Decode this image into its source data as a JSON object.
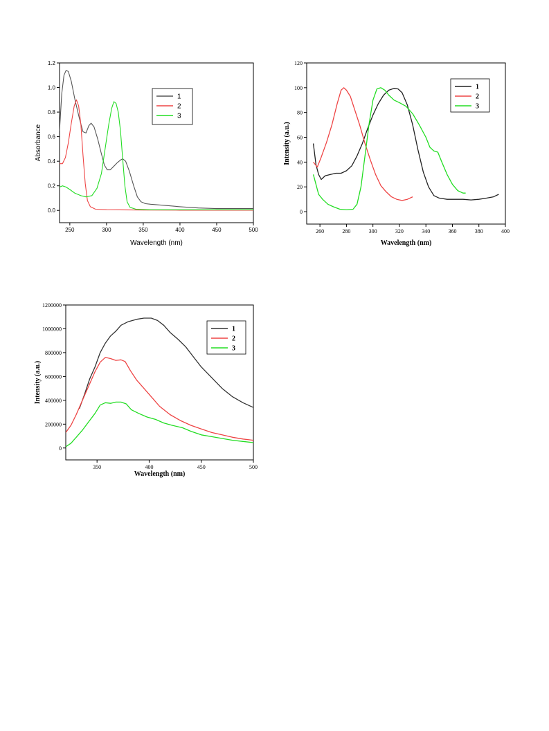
{
  "chart_data": [
    {
      "type": "line",
      "xlabel": "Wavelength (nm)",
      "ylabel": "Absorbance",
      "xlim": [
        236,
        500
      ],
      "ylim": [
        -0.1,
        1.2
      ],
      "xticks": [
        250,
        300,
        350,
        400,
        450,
        500
      ],
      "yticks": [
        0.0,
        0.2,
        0.4,
        0.6,
        0.8,
        1.0,
        1.2
      ],
      "ytick_labels": [
        "0.0",
        "0.2",
        "0.4",
        "0.6",
        "0.8",
        "1.0",
        "1.2"
      ],
      "grid": false,
      "legend_position": "top-center-right",
      "series": [
        {
          "name": "1",
          "color": "#555555",
          "points": [
            [
              236,
              0.65
            ],
            [
              239,
              0.95
            ],
            [
              242,
              1.1
            ],
            [
              245,
              1.14
            ],
            [
              248,
              1.13
            ],
            [
              252,
              1.05
            ],
            [
              257,
              0.9
            ],
            [
              263,
              0.75
            ],
            [
              268,
              0.64
            ],
            [
              272,
              0.63
            ],
            [
              276,
              0.69
            ],
            [
              279,
              0.71
            ],
            [
              283,
              0.68
            ],
            [
              288,
              0.58
            ],
            [
              293,
              0.46
            ],
            [
              297,
              0.37
            ],
            [
              301,
              0.33
            ],
            [
              305,
              0.33
            ],
            [
              310,
              0.36
            ],
            [
              315,
              0.39
            ],
            [
              319,
              0.41
            ],
            [
              322,
              0.42
            ],
            [
              326,
              0.4
            ],
            [
              331,
              0.32
            ],
            [
              337,
              0.2
            ],
            [
              342,
              0.11
            ],
            [
              347,
              0.07
            ],
            [
              353,
              0.055
            ],
            [
              360,
              0.05
            ],
            [
              380,
              0.04
            ],
            [
              400,
              0.03
            ],
            [
              425,
              0.02
            ],
            [
              450,
              0.015
            ],
            [
              475,
              0.015
            ],
            [
              500,
              0.015
            ]
          ]
        },
        {
          "name": "2",
          "color": "#ee4444",
          "points": [
            [
              236,
              0.38
            ],
            [
              240,
              0.38
            ],
            [
              244,
              0.43
            ],
            [
              248,
              0.55
            ],
            [
              252,
              0.71
            ],
            [
              256,
              0.85
            ],
            [
              259,
              0.9
            ],
            [
              262,
              0.85
            ],
            [
              265,
              0.7
            ],
            [
              268,
              0.45
            ],
            [
              271,
              0.22
            ],
            [
              274,
              0.08
            ],
            [
              278,
              0.03
            ],
            [
              285,
              0.01
            ],
            [
              300,
              0.005
            ],
            [
              350,
              0.003
            ],
            [
              400,
              0.002
            ],
            [
              500,
              0.002
            ]
          ]
        },
        {
          "name": "3",
          "color": "#22dd22",
          "points": [
            [
              236,
              0.19
            ],
            [
              240,
              0.2
            ],
            [
              245,
              0.19
            ],
            [
              250,
              0.17
            ],
            [
              257,
              0.14
            ],
            [
              265,
              0.12
            ],
            [
              272,
              0.11
            ],
            [
              280,
              0.12
            ],
            [
              287,
              0.18
            ],
            [
              293,
              0.3
            ],
            [
              298,
              0.5
            ],
            [
              303,
              0.7
            ],
            [
              307,
              0.83
            ],
            [
              310,
              0.885
            ],
            [
              313,
              0.87
            ],
            [
              316,
              0.8
            ],
            [
              319,
              0.65
            ],
            [
              322,
              0.42
            ],
            [
              325,
              0.2
            ],
            [
              328,
              0.07
            ],
            [
              332,
              0.025
            ],
            [
              340,
              0.01
            ],
            [
              360,
              0.005
            ],
            [
              400,
              0.005
            ],
            [
              500,
              0.005
            ]
          ]
        }
      ]
    },
    {
      "type": "line",
      "xlabel": "Wavelength (nm)",
      "ylabel": "Intensity (a.u.)",
      "xlim": [
        250,
        400
      ],
      "ylim": [
        -10,
        120
      ],
      "xticks": [
        260,
        280,
        300,
        320,
        340,
        360,
        380,
        400
      ],
      "yticks": [
        0,
        20,
        40,
        60,
        80,
        100,
        120
      ],
      "ytick_labels": [
        "0",
        "20",
        "40",
        "60",
        "80",
        "100",
        "120"
      ],
      "grid": false,
      "legend_position": "top-right",
      "series": [
        {
          "name": "1",
          "color": "#222222",
          "points": [
            [
              255,
              55
            ],
            [
              257,
              38
            ],
            [
              259,
              30
            ],
            [
              261,
              26
            ],
            [
              264,
              29
            ],
            [
              268,
              30
            ],
            [
              272,
              31
            ],
            [
              276,
              31
            ],
            [
              280,
              33
            ],
            [
              284,
              37
            ],
            [
              288,
              45
            ],
            [
              292,
              55
            ],
            [
              296,
              67
            ],
            [
              300,
              78
            ],
            [
              304,
              87
            ],
            [
              308,
              94
            ],
            [
              312,
              98
            ],
            [
              316,
              99.5
            ],
            [
              319,
              99
            ],
            [
              322,
              96
            ],
            [
              326,
              86
            ],
            [
              330,
              70
            ],
            [
              334,
              50
            ],
            [
              338,
              32
            ],
            [
              342,
              20
            ],
            [
              346,
              13
            ],
            [
              350,
              11
            ],
            [
              356,
              10
            ],
            [
              362,
              10
            ],
            [
              368,
              10
            ],
            [
              374,
              9.5
            ],
            [
              380,
              10
            ],
            [
              386,
              11
            ],
            [
              391,
              12
            ],
            [
              395,
              14
            ]
          ]
        },
        {
          "name": "2",
          "color": "#ee4444",
          "points": [
            [
              255,
              40
            ],
            [
              258,
              36
            ],
            [
              261,
              44
            ],
            [
              265,
              56
            ],
            [
              269,
              70
            ],
            [
              273,
              87
            ],
            [
              276,
              98
            ],
            [
              278,
              100
            ],
            [
              280,
              98
            ],
            [
              283,
              93
            ],
            [
              286,
              83
            ],
            [
              290,
              70
            ],
            [
              294,
              55
            ],
            [
              298,
              42
            ],
            [
              302,
              30
            ],
            [
              306,
              21
            ],
            [
              310,
              16
            ],
            [
              314,
              12
            ],
            [
              318,
              10
            ],
            [
              322,
              9
            ],
            [
              326,
              10
            ],
            [
              330,
              12
            ]
          ]
        },
        {
          "name": "3",
          "color": "#22dd22",
          "points": [
            [
              255,
              30
            ],
            [
              257,
              22
            ],
            [
              259,
              14
            ],
            [
              262,
              10
            ],
            [
              266,
              6
            ],
            [
              270,
              4
            ],
            [
              275,
              2
            ],
            [
              280,
              1.5
            ],
            [
              285,
              2
            ],
            [
              288,
              6
            ],
            [
              291,
              20
            ],
            [
              294,
              45
            ],
            [
              297,
              70
            ],
            [
              300,
              90
            ],
            [
              303,
              99
            ],
            [
              306,
              100
            ],
            [
              309,
              98
            ],
            [
              312,
              94
            ],
            [
              316,
              90
            ],
            [
              320,
              88
            ],
            [
              325,
              85
            ],
            [
              330,
              79
            ],
            [
              335,
              70
            ],
            [
              340,
              60
            ],
            [
              343,
              52
            ],
            [
              346,
              49
            ],
            [
              349,
              48
            ],
            [
              352,
              40
            ],
            [
              356,
              30
            ],
            [
              360,
              22
            ],
            [
              364,
              17
            ],
            [
              368,
              15
            ],
            [
              370,
              15
            ]
          ]
        }
      ]
    },
    {
      "type": "line",
      "xlabel": "Wavelength (nm)",
      "ylabel": "Intensity (a.u.)",
      "xlim": [
        320,
        500
      ],
      "ylim": [
        -100000,
        1200000
      ],
      "xticks": [
        350,
        400,
        450,
        500
      ],
      "yticks": [
        0,
        200000,
        400000,
        600000,
        800000,
        1000000,
        1200000
      ],
      "ytick_labels": [
        "0",
        "200000",
        "400000",
        "600000",
        "800000",
        "1000000",
        "1200000"
      ],
      "grid": false,
      "legend_position": "top-right",
      "series": [
        {
          "name": "1",
          "color": "#333333",
          "points": [
            [
              333,
              330000
            ],
            [
              338,
              450000
            ],
            [
              343,
              580000
            ],
            [
              348,
              680000
            ],
            [
              353,
              800000
            ],
            [
              358,
              880000
            ],
            [
              363,
              940000
            ],
            [
              368,
              980000
            ],
            [
              373,
              1030000
            ],
            [
              380,
              1060000
            ],
            [
              388,
              1080000
            ],
            [
              395,
              1090000
            ],
            [
              402,
              1090000
            ],
            [
              408,
              1070000
            ],
            [
              414,
              1030000
            ],
            [
              420,
              970000
            ],
            [
              428,
              910000
            ],
            [
              435,
              850000
            ],
            [
              442,
              770000
            ],
            [
              450,
              680000
            ],
            [
              460,
              590000
            ],
            [
              470,
              500000
            ],
            [
              480,
              430000
            ],
            [
              490,
              380000
            ],
            [
              500,
              340000
            ]
          ]
        },
        {
          "name": "2",
          "color": "#ee4444",
          "points": [
            [
              320,
              130000
            ],
            [
              325,
              190000
            ],
            [
              330,
              280000
            ],
            [
              336,
              400000
            ],
            [
              342,
              520000
            ],
            [
              348,
              640000
            ],
            [
              353,
              720000
            ],
            [
              358,
              760000
            ],
            [
              363,
              750000
            ],
            [
              368,
              735000
            ],
            [
              373,
              740000
            ],
            [
              377,
              725000
            ],
            [
              382,
              650000
            ],
            [
              388,
              570000
            ],
            [
              395,
              500000
            ],
            [
              402,
              430000
            ],
            [
              410,
              350000
            ],
            [
              420,
              280000
            ],
            [
              430,
              230000
            ],
            [
              440,
              190000
            ],
            [
              450,
              160000
            ],
            [
              460,
              130000
            ],
            [
              470,
              110000
            ],
            [
              480,
              90000
            ],
            [
              490,
              75000
            ],
            [
              500,
              65000
            ]
          ]
        },
        {
          "name": "3",
          "color": "#22dd22",
          "points": [
            [
              320,
              10000
            ],
            [
              325,
              40000
            ],
            [
              330,
              90000
            ],
            [
              336,
              150000
            ],
            [
              342,
              220000
            ],
            [
              348,
              290000
            ],
            [
              353,
              360000
            ],
            [
              358,
              380000
            ],
            [
              363,
              375000
            ],
            [
              368,
              385000
            ],
            [
              373,
              385000
            ],
            [
              378,
              370000
            ],
            [
              383,
              320000
            ],
            [
              390,
              290000
            ],
            [
              398,
              260000
            ],
            [
              406,
              240000
            ],
            [
              414,
              210000
            ],
            [
              422,
              190000
            ],
            [
              432,
              170000
            ],
            [
              440,
              140000
            ],
            [
              450,
              110000
            ],
            [
              460,
              95000
            ],
            [
              470,
              80000
            ],
            [
              480,
              65000
            ],
            [
              490,
              55000
            ],
            [
              500,
              45000
            ]
          ]
        }
      ]
    }
  ]
}
